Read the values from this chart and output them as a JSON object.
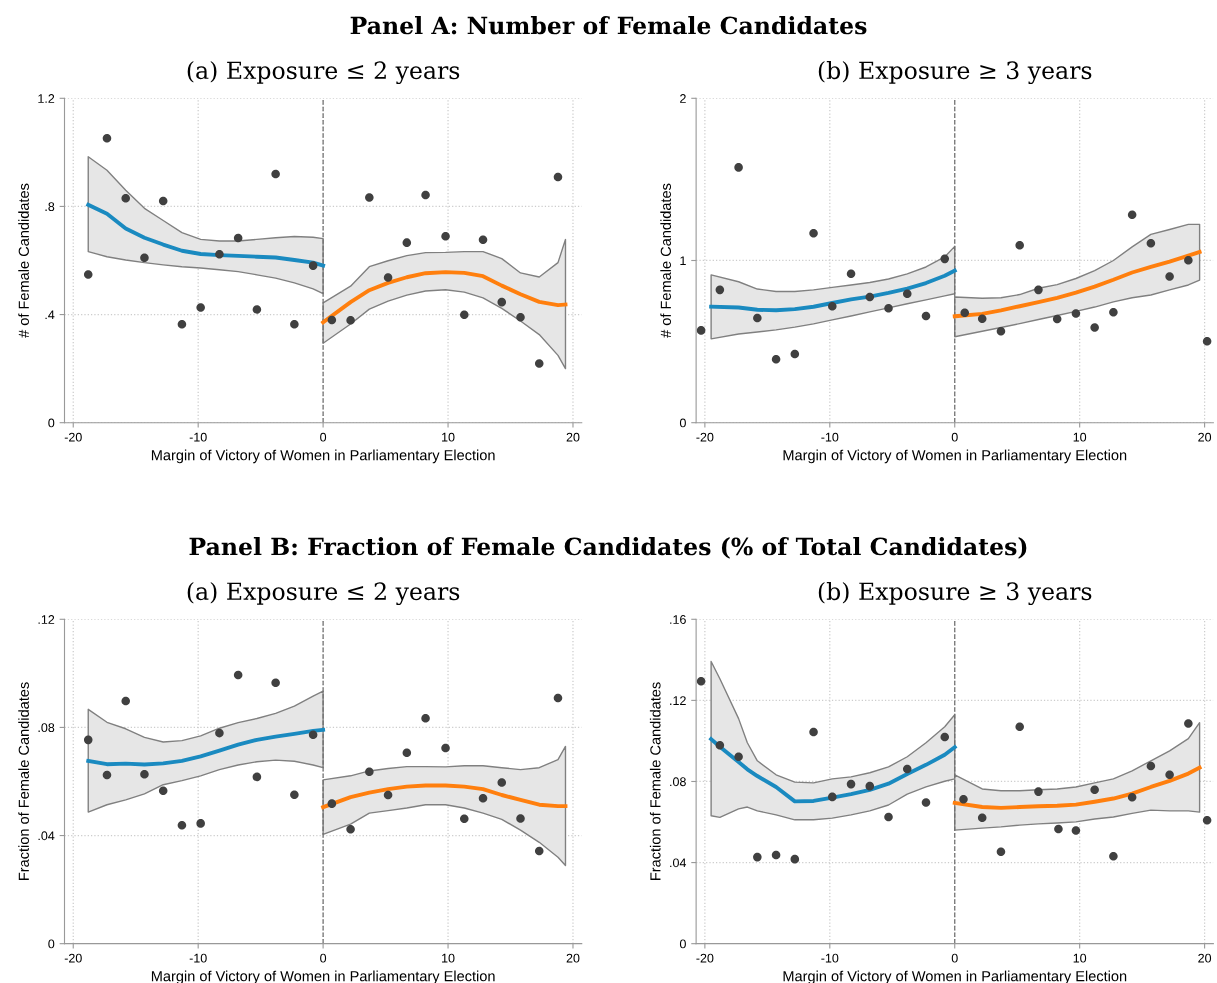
{
  "chart_data": [
    {
      "type": "scatter",
      "title": "Panel A: Number of Female Candidates",
      "subtitle": "(a) Exposure ≤ 2 years",
      "xlabel": "Margin of Victory of Women in Parliamentary Election",
      "ylabel": "# of Female Candidates",
      "xlim": [
        -20.7,
        20.7
      ],
      "xticks": [
        -20,
        -10,
        0,
        10,
        20
      ],
      "ylim": [
        0,
        1.2
      ],
      "yticks": [
        0,
        {
          "value": 0.4,
          "label": ".4"
        },
        {
          "value": 0.8,
          "label": ".8"
        },
        1.2
      ],
      "grid": true,
      "ref_lines": [
        {
          "axis": "x",
          "value": 0,
          "color": "#707070",
          "line_style": "dashed"
        }
      ],
      "series": [
        {
          "marker": "circle",
          "color": "#404040",
          "x": [
            -18.8,
            -17.3,
            -15.8,
            -14.3,
            -12.8,
            -11.3,
            -9.8,
            -8.3,
            -6.8,
            -5.3,
            -3.8,
            -2.3,
            -0.8,
            0.7,
            2.2,
            3.7,
            5.2,
            6.7,
            8.2,
            9.8,
            11.3,
            12.8,
            14.3,
            15.8,
            17.3,
            18.8
          ],
          "values": [
            0.548,
            1.052,
            0.83,
            0.61,
            0.82,
            0.364,
            0.426,
            0.623,
            0.683,
            0.419,
            0.92,
            0.364,
            0.581,
            0.38,
            0.379,
            0.833,
            0.537,
            0.666,
            0.842,
            0.69,
            0.399,
            0.677,
            0.446,
            0.39,
            0.219,
            0.909
          ]
        },
        {
          "type": "line",
          "color": "#1a8ac0",
          "x": [
            -18.8,
            -17.3,
            -15.8,
            -14.3,
            -12.8,
            -11.3,
            -9.8,
            -8.3,
            -6.8,
            -5.3,
            -3.8,
            -2.3,
            -0.8,
            0
          ],
          "values": [
            0.806,
            0.773,
            0.718,
            0.684,
            0.659,
            0.636,
            0.624,
            0.62,
            0.617,
            0.614,
            0.611,
            0.602,
            0.592,
            0.581
          ],
          "lower": [
            0.633,
            0.614,
            0.602,
            0.592,
            0.584,
            0.577,
            0.572,
            0.566,
            0.559,
            0.547,
            0.535,
            0.517,
            0.495,
            0.477
          ],
          "upper": [
            0.984,
            0.934,
            0.86,
            0.793,
            0.748,
            0.703,
            0.678,
            0.672,
            0.672,
            0.678,
            0.684,
            0.689,
            0.686,
            0.681
          ]
        },
        {
          "type": "line",
          "color": "#ff7f0e",
          "x": [
            0,
            2.2,
            3.7,
            5.2,
            6.7,
            8.2,
            9.8,
            11.3,
            12.8,
            14.3,
            15.8,
            17.3,
            18.8,
            19.4
          ],
          "values": [
            0.371,
            0.446,
            0.49,
            0.517,
            0.538,
            0.553,
            0.557,
            0.554,
            0.542,
            0.507,
            0.475,
            0.447,
            0.435,
            0.437
          ],
          "lower": [
            0.294,
            0.365,
            0.42,
            0.45,
            0.472,
            0.487,
            0.492,
            0.483,
            0.462,
            0.423,
            0.376,
            0.326,
            0.249,
            0.2
          ],
          "upper": [
            0.443,
            0.505,
            0.577,
            0.599,
            0.618,
            0.629,
            0.63,
            0.633,
            0.633,
            0.607,
            0.554,
            0.539,
            0.592,
            0.678
          ]
        }
      ]
    },
    {
      "type": "scatter",
      "subtitle": "(b) Exposure ≥ 3 years",
      "xlabel": "Margin of Victory of Women in Parliamentary Election",
      "ylabel": "# of Female Candidates",
      "xlim": [
        -20.7,
        20.7
      ],
      "xticks": [
        -20,
        -10,
        0,
        10,
        20
      ],
      "ylim": [
        0,
        2
      ],
      "yticks": [
        0,
        1,
        2
      ],
      "grid": true,
      "ref_lines": [
        {
          "axis": "x",
          "value": 0,
          "color": "#707070",
          "line_style": "dashed"
        }
      ],
      "series": [
        {
          "marker": "circle",
          "color": "#404040",
          "x": [
            -20.3,
            -18.8,
            -17.3,
            -15.8,
            -14.3,
            -12.8,
            -11.3,
            -9.8,
            -8.3,
            -6.8,
            -5.3,
            -3.8,
            -2.3,
            -0.8,
            0.8,
            2.2,
            3.7,
            5.2,
            6.7,
            8.2,
            9.7,
            11.2,
            12.7,
            14.2,
            15.7,
            17.2,
            18.7,
            20.2
          ],
          "values": [
            0.569,
            0.819,
            1.574,
            0.646,
            0.391,
            0.423,
            1.168,
            0.718,
            0.918,
            0.775,
            0.705,
            0.795,
            0.658,
            1.01,
            0.678,
            0.641,
            0.564,
            1.094,
            0.819,
            0.639,
            0.673,
            0.587,
            0.681,
            1.282,
            1.106,
            0.901,
            1.002,
            0.502
          ]
        },
        {
          "type": "line",
          "color": "#1a8ac0",
          "x": [
            -19.5,
            -17.3,
            -15.8,
            -14.3,
            -12.8,
            -11.3,
            -9.8,
            -8.3,
            -6.8,
            -5.3,
            -3.8,
            -2.3,
            -0.8,
            0
          ],
          "values": [
            0.715,
            0.71,
            0.696,
            0.693,
            0.7,
            0.715,
            0.738,
            0.76,
            0.777,
            0.8,
            0.827,
            0.861,
            0.906,
            0.938
          ],
          "lower": [
            0.517,
            0.547,
            0.559,
            0.572,
            0.589,
            0.609,
            0.634,
            0.658,
            0.683,
            0.708,
            0.733,
            0.757,
            0.782,
            0.795
          ],
          "upper": [
            0.911,
            0.869,
            0.824,
            0.809,
            0.809,
            0.819,
            0.834,
            0.849,
            0.864,
            0.886,
            0.918,
            0.96,
            1.022,
            1.087
          ]
        },
        {
          "type": "line",
          "color": "#ff7f0e",
          "x": [
            0,
            2.2,
            3.7,
            5.2,
            6.7,
            8.2,
            9.7,
            11.2,
            12.7,
            14.2,
            15.7,
            17.2,
            18.7,
            19.6
          ],
          "values": [
            0.656,
            0.671,
            0.693,
            0.718,
            0.743,
            0.77,
            0.802,
            0.839,
            0.881,
            0.926,
            0.96,
            0.993,
            1.03,
            1.052
          ],
          "lower": [
            0.53,
            0.564,
            0.587,
            0.611,
            0.636,
            0.661,
            0.686,
            0.713,
            0.745,
            0.77,
            0.787,
            0.819,
            0.849,
            0.879
          ],
          "upper": [
            0.775,
            0.767,
            0.77,
            0.79,
            0.829,
            0.851,
            0.889,
            0.938,
            1.0,
            1.084,
            1.161,
            1.191,
            1.223,
            1.223
          ]
        }
      ]
    },
    {
      "type": "scatter",
      "title": "Panel B: Fraction of Female Candidates (% of Total Candidates)",
      "subtitle": "(a) Exposure ≤ 2 years",
      "xlabel": "Margin of Victory of Women in Parliamentary Election",
      "ylabel": "Fraction of Female Candidates",
      "xlim": [
        -20.7,
        20.7
      ],
      "xticks": [
        -20,
        -10,
        0,
        10,
        20
      ],
      "ylim": [
        0,
        0.12
      ],
      "yticks": [
        0,
        {
          "value": 0.04,
          "label": ".04"
        },
        {
          "value": 0.08,
          "label": ".08"
        },
        {
          "value": 0.12,
          "label": ".12"
        }
      ],
      "grid": true,
      "ref_lines": [
        {
          "axis": "x",
          "value": 0,
          "color": "#707070",
          "line_style": "dashed"
        }
      ],
      "series": [
        {
          "marker": "circle",
          "color": "#404040",
          "x": [
            -18.8,
            -17.3,
            -15.8,
            -14.3,
            -12.8,
            -11.3,
            -9.8,
            -8.3,
            -6.8,
            -5.3,
            -3.8,
            -2.3,
            -0.8,
            0.7,
            2.2,
            3.7,
            5.2,
            6.7,
            8.2,
            9.8,
            11.3,
            12.8,
            14.3,
            15.8,
            17.3,
            18.8
          ],
          "values": [
            0.0754,
            0.0624,
            0.0898,
            0.0627,
            0.0566,
            0.0438,
            0.0445,
            0.0779,
            0.0994,
            0.0617,
            0.0965,
            0.0551,
            0.0773,
            0.0518,
            0.0423,
            0.0636,
            0.055,
            0.0706,
            0.0834,
            0.0724,
            0.0462,
            0.0538,
            0.0596,
            0.0463,
            0.0343,
            0.0909
          ]
        },
        {
          "type": "line",
          "color": "#1a8ac0",
          "x": [
            -18.8,
            -17.3,
            -15.8,
            -14.3,
            -12.8,
            -11.3,
            -9.8,
            -8.3,
            -6.8,
            -5.3,
            -3.8,
            -2.3,
            -0.8,
            0
          ],
          "values": [
            0.0676,
            0.0664,
            0.0666,
            0.0663,
            0.0667,
            0.0676,
            0.0693,
            0.0714,
            0.0736,
            0.0754,
            0.0766,
            0.0776,
            0.0787,
            0.0791
          ],
          "lower": [
            0.0487,
            0.0514,
            0.0532,
            0.0554,
            0.0588,
            0.0603,
            0.0621,
            0.0644,
            0.0661,
            0.0673,
            0.0679,
            0.0675,
            0.0661,
            0.0651
          ],
          "upper": [
            0.0867,
            0.0819,
            0.0795,
            0.0763,
            0.0746,
            0.0751,
            0.0769,
            0.0797,
            0.0818,
            0.0833,
            0.0852,
            0.0879,
            0.0916,
            0.0934
          ]
        },
        {
          "type": "line",
          "color": "#ff7f0e",
          "x": [
            0,
            2.2,
            3.7,
            5.2,
            6.7,
            8.2,
            9.8,
            11.3,
            12.8,
            14.3,
            15.8,
            17.3,
            18.8,
            19.4
          ],
          "values": [
            0.0505,
            0.0542,
            0.0559,
            0.0572,
            0.0581,
            0.0585,
            0.0585,
            0.0581,
            0.0572,
            0.055,
            0.0532,
            0.0514,
            0.0509,
            0.0509
          ],
          "lower": [
            0.0404,
            0.0442,
            0.0483,
            0.0492,
            0.0502,
            0.0514,
            0.0514,
            0.0502,
            0.0483,
            0.046,
            0.042,
            0.0375,
            0.032,
            0.0289
          ],
          "upper": [
            0.0606,
            0.0621,
            0.0639,
            0.0648,
            0.0655,
            0.0655,
            0.0654,
            0.0658,
            0.0658,
            0.0651,
            0.0644,
            0.0651,
            0.0681,
            0.073
          ]
        }
      ]
    },
    {
      "type": "scatter",
      "subtitle": "(b) Exposure ≥ 3 years",
      "xlabel": "Margin of Victory of Women in Parliamentary Election",
      "ylabel": "Fraction of Female Candidates",
      "xlim": [
        -20.7,
        20.7
      ],
      "xticks": [
        -20,
        -10,
        0,
        10,
        20
      ],
      "ylim": [
        0,
        0.16
      ],
      "yticks": [
        0,
        {
          "value": 0.04,
          "label": ".04"
        },
        {
          "value": 0.08,
          "label": ".08"
        },
        {
          "value": 0.12,
          "label": ".12"
        },
        {
          "value": 0.16,
          "label": ".16"
        }
      ],
      "grid": true,
      "ref_lines": [
        {
          "axis": "x",
          "value": 0,
          "color": "#707070",
          "line_style": "dashed"
        }
      ],
      "series": [
        {
          "marker": "circle",
          "color": "#404040",
          "x": [
            -20.3,
            -18.8,
            -17.3,
            -15.8,
            -14.3,
            -12.8,
            -11.3,
            -9.8,
            -8.3,
            -6.8,
            -5.3,
            -3.8,
            -2.3,
            -0.8,
            0.7,
            2.2,
            3.7,
            5.2,
            6.7,
            8.3,
            9.7,
            11.2,
            12.7,
            14.2,
            15.7,
            17.2,
            18.7,
            20.2
          ],
          "values": [
            0.1294,
            0.0979,
            0.0922,
            0.0427,
            0.0437,
            0.0417,
            0.1044,
            0.0724,
            0.0787,
            0.0777,
            0.0625,
            0.0862,
            0.0696,
            0.1019,
            0.0712,
            0.0621,
            0.0453,
            0.107,
            0.075,
            0.0566,
            0.0558,
            0.0759,
            0.0431,
            0.0722,
            0.0876,
            0.0833,
            0.1086,
            0.0609
          ]
        },
        {
          "type": "line",
          "color": "#1a8ac0",
          "x": [
            -19.5,
            -18.8,
            -17.3,
            -16.6,
            -15.8,
            -14.3,
            -12.8,
            -11.3,
            -9.8,
            -8.3,
            -6.8,
            -5.3,
            -3.8,
            -2.3,
            -0.8,
            0
          ],
          "values": [
            0.1009,
            0.0971,
            0.0896,
            0.086,
            0.0827,
            0.0773,
            0.0702,
            0.0704,
            0.072,
            0.0738,
            0.0759,
            0.0789,
            0.0837,
            0.0882,
            0.0932,
            0.0969
          ],
          "lower": [
            0.0631,
            0.0623,
            0.0665,
            0.0674,
            0.0655,
            0.0635,
            0.0611,
            0.0611,
            0.0619,
            0.0635,
            0.0655,
            0.0684,
            0.0738,
            0.0773,
            0.0801,
            0.0813
          ],
          "upper": [
            0.1392,
            0.1307,
            0.111,
            0.0991,
            0.0902,
            0.0833,
            0.0797,
            0.0793,
            0.0813,
            0.0823,
            0.0843,
            0.0872,
            0.0922,
            0.0991,
            0.107,
            0.1129
          ]
        },
        {
          "type": "line",
          "color": "#ff7f0e",
          "x": [
            0,
            2.2,
            3.7,
            5.2,
            6.7,
            8.2,
            9.7,
            11.2,
            12.7,
            14.2,
            15.7,
            17.2,
            18.7,
            19.6
          ],
          "values": [
            0.0694,
            0.0674,
            0.067,
            0.0674,
            0.0678,
            0.068,
            0.0686,
            0.07,
            0.0716,
            0.074,
            0.0773,
            0.0803,
            0.0839,
            0.0868
          ],
          "lower": [
            0.056,
            0.057,
            0.0576,
            0.0585,
            0.0591,
            0.0595,
            0.0601,
            0.0615,
            0.0625,
            0.0643,
            0.0659,
            0.0655,
            0.0655,
            0.0649
          ],
          "upper": [
            0.0833,
            0.0763,
            0.0754,
            0.0754,
            0.0759,
            0.0763,
            0.0773,
            0.0793,
            0.0813,
            0.0852,
            0.0902,
            0.0951,
            0.1011,
            0.109
          ]
        }
      ]
    }
  ]
}
